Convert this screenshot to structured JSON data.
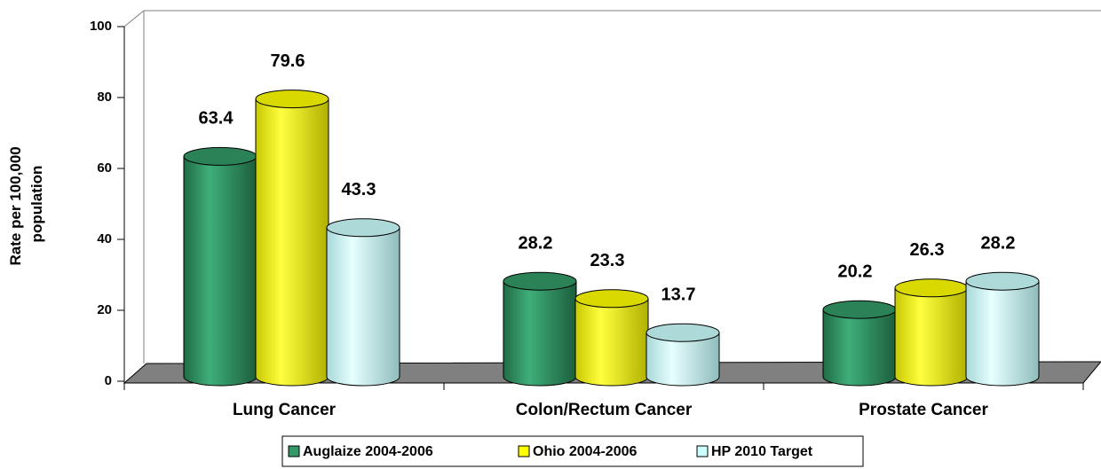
{
  "chart_data": {
    "type": "bar3d",
    "ylabel": [
      "Rate per 100,000",
      "population"
    ],
    "categories": [
      "Lung Cancer",
      "Colon/Rectum Cancer",
      "Prostate Cancer"
    ],
    "series": [
      {
        "name": "Auglaize 2004-2006",
        "color": "#339966",
        "values": [
          63.4,
          28.2,
          20.2
        ]
      },
      {
        "name": "Ohio 2004-2006",
        "color": "#ffff00",
        "values": [
          79.6,
          23.3,
          26.3
        ]
      },
      {
        "name": "HP 2010 Target",
        "color": "#ccffff",
        "values": [
          43.3,
          13.7,
          28.2
        ]
      }
    ],
    "ylim": [
      0,
      100
    ],
    "yticks": [
      0,
      20,
      40,
      60,
      80,
      100
    ],
    "legend": "bottom"
  }
}
